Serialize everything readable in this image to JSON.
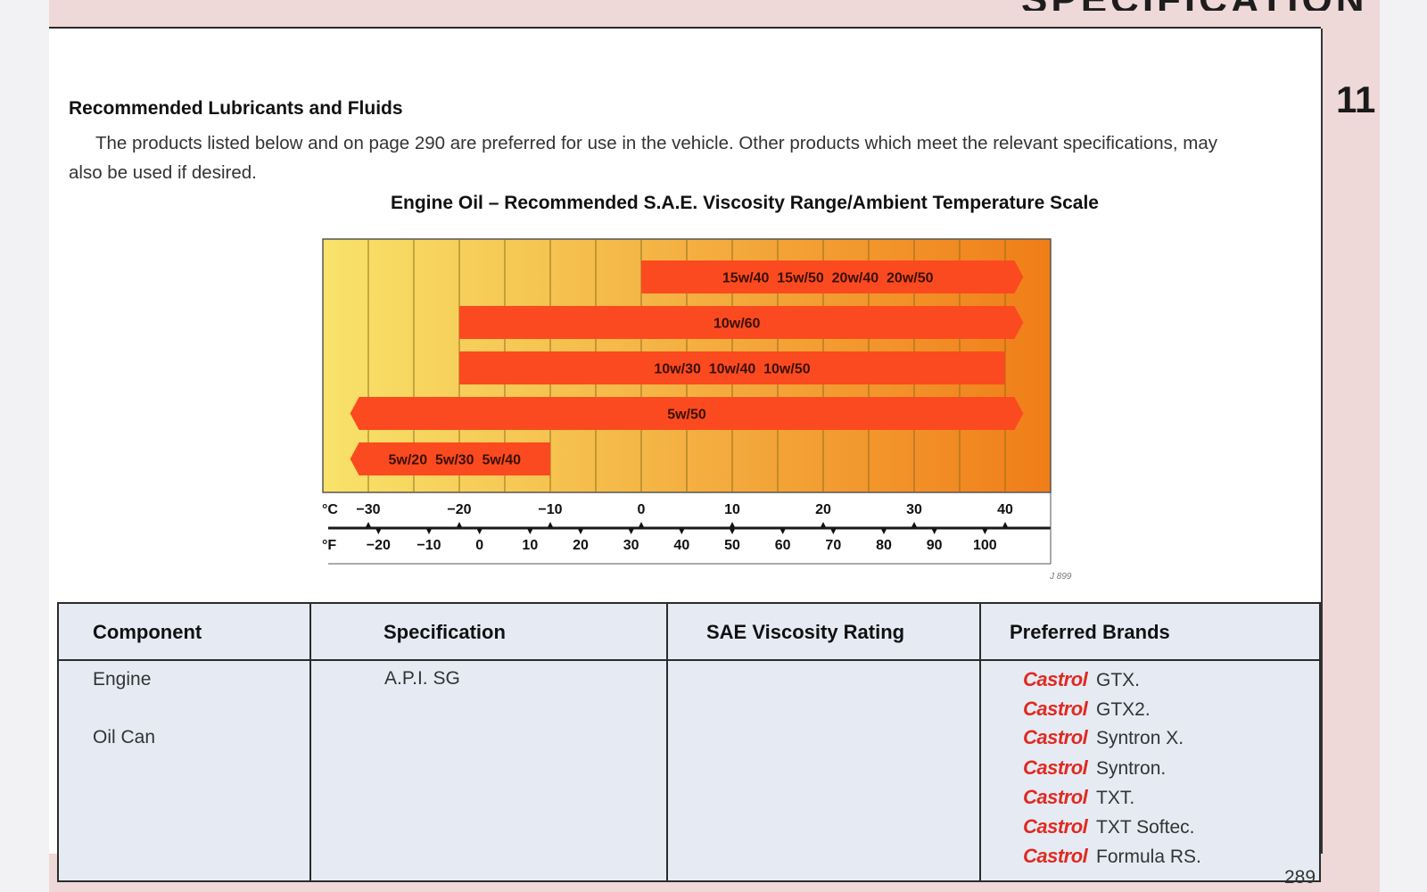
{
  "header": {
    "title": "SPECIFICATION",
    "chapter": "11"
  },
  "section": {
    "title": "Recommended Lubricants and Fluids",
    "intro": "The products listed below and on page 290 are preferred for use in the vehicle.  Other products which meet the relevant specifications, may also be used if desired."
  },
  "chart_title": "Engine Oil – Recommended S.A.E. Viscosity Range/Ambient Temperature Scale",
  "chart_data": {
    "type": "range-bar",
    "title": "Engine Oil – Recommended S.A.E. Viscosity Range/Ambient Temperature Scale",
    "xlim": [
      -35,
      45
    ],
    "celsius_label": "°C",
    "fahrenheit_label": "°F",
    "celsius_ticks": [
      "−30",
      "−20",
      "−10",
      "0",
      "10",
      "20",
      "30",
      "40"
    ],
    "celsius_tick_values": [
      -30,
      -20,
      -10,
      0,
      10,
      20,
      30,
      40
    ],
    "fahrenheit_ticks": [
      "−20",
      "−10",
      "0",
      "10",
      "20",
      "30",
      "40",
      "50",
      "60",
      "70",
      "80",
      "90",
      "100"
    ],
    "fahrenheit_tick_values": [
      -20,
      -10,
      0,
      10,
      20,
      30,
      40,
      50,
      60,
      70,
      80,
      90,
      100
    ],
    "bands": [
      {
        "label": "15w/40  15w/50  20w/40  20w/50",
        "from": 0,
        "to": 42,
        "open_left": false,
        "open_right": true
      },
      {
        "label": "10w/60",
        "from": -20,
        "to": 42,
        "open_left": false,
        "open_right": true
      },
      {
        "label": "10w/30  10w/40  10w/50",
        "from": -20,
        "to": 40,
        "open_left": false,
        "open_right": false
      },
      {
        "label": "5w/50",
        "from": -32,
        "to": 42,
        "open_left": true,
        "open_right": true
      },
      {
        "label": "5w/20  5w/30  5w/40",
        "from": -32,
        "to": -10,
        "open_left": true,
        "open_right": false
      }
    ],
    "colors": {
      "band": "#fb4a20",
      "cold": "#f8e36a",
      "hot": "#f07d18"
    }
  },
  "ref_code": "J 899",
  "table": {
    "headers": [
      "Component",
      "Specification",
      "SAE Viscosity Rating",
      "Preferred Brands"
    ],
    "components": [
      "Engine",
      "Oil Can"
    ],
    "specification": "A.P.I. SG",
    "brand_name": "Castrol",
    "brands": [
      "GTX.",
      "GTX2.",
      "Syntron X.",
      "Syntron.",
      "TXT.",
      "TXT Softec.",
      "Formula RS."
    ]
  },
  "page_number": "289"
}
